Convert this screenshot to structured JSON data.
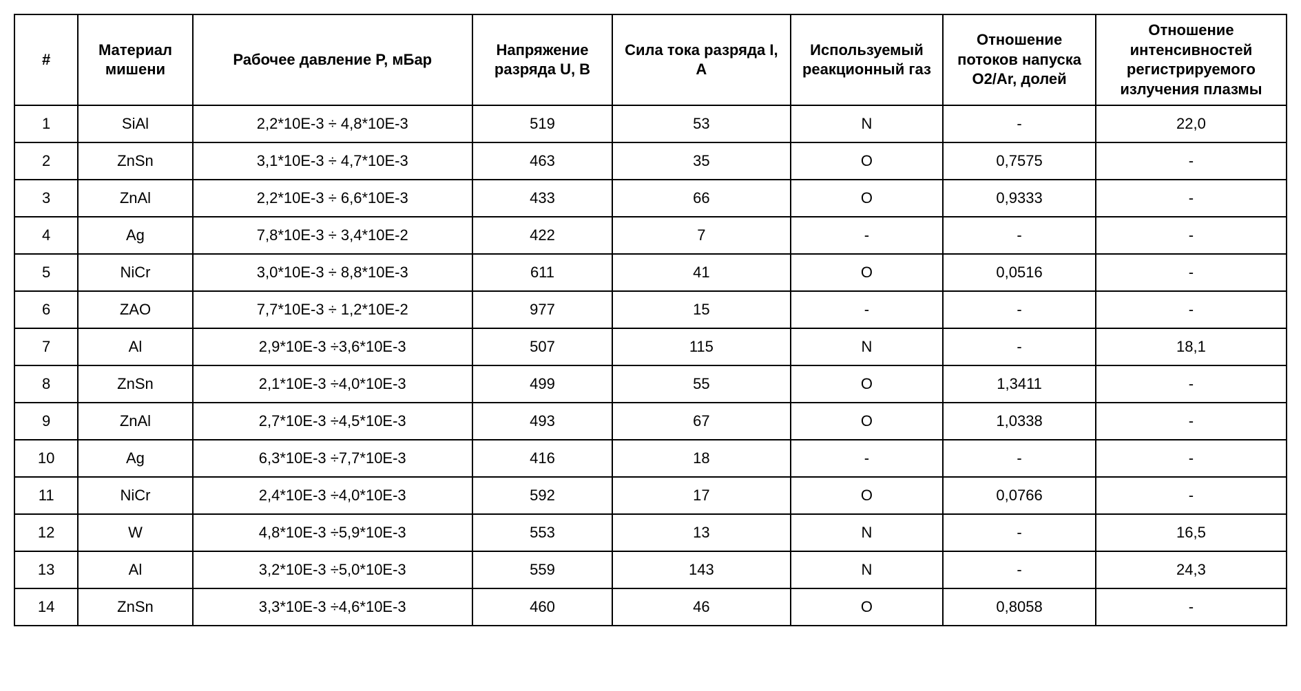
{
  "table": {
    "headers": [
      "#",
      "Материал мишени",
      "Рабочее давление P, мБар",
      "Напряжение разряда U, B",
      "Сила тока разряда I, A",
      "Используемый реакционный газ",
      "Отношение потоков напуска O2/Ar, долей",
      "Отношение интенсивностей регистрируемого излучения плазмы"
    ],
    "column_classes": [
      "col-num",
      "col-material",
      "col-pressure",
      "col-voltage",
      "col-current",
      "col-gas",
      "col-ratio",
      "col-intensity"
    ],
    "rows": [
      [
        "1",
        "SiAl",
        "2,2*10E-3 ÷ 4,8*10E-3",
        "519",
        "53",
        "N",
        "-",
        "22,0"
      ],
      [
        "2",
        "ZnSn",
        "3,1*10E-3 ÷ 4,7*10E-3",
        "463",
        "35",
        "O",
        "0,7575",
        "-"
      ],
      [
        "3",
        "ZnAl",
        "2,2*10E-3 ÷ 6,6*10E-3",
        "433",
        "66",
        "O",
        "0,9333",
        "-"
      ],
      [
        "4",
        "Ag",
        "7,8*10E-3 ÷ 3,4*10E-2",
        "422",
        "7",
        "-",
        "-",
        "-"
      ],
      [
        "5",
        "NiCr",
        "3,0*10E-3 ÷ 8,8*10E-3",
        "611",
        "41",
        "O",
        "0,0516",
        "-"
      ],
      [
        "6",
        "ZAO",
        "7,7*10E-3 ÷ 1,2*10E-2",
        "977",
        "15",
        "-",
        "-",
        "-"
      ],
      [
        "7",
        "Al",
        "2,9*10E-3 ÷3,6*10E-3",
        "507",
        "115",
        "N",
        "-",
        "18,1"
      ],
      [
        "8",
        "ZnSn",
        "2,1*10E-3 ÷4,0*10E-3",
        "499",
        "55",
        "O",
        "1,3411",
        "-"
      ],
      [
        "9",
        "ZnAl",
        "2,7*10E-3 ÷4,5*10E-3",
        "493",
        "67",
        "O",
        "1,0338",
        "-"
      ],
      [
        "10",
        "Ag",
        "6,3*10E-3 ÷7,7*10E-3",
        "416",
        "18",
        "-",
        "-",
        "-"
      ],
      [
        "11",
        "NiCr",
        "2,4*10E-3 ÷4,0*10E-3",
        "592",
        "17",
        "O",
        "0,0766",
        "-"
      ],
      [
        "12",
        "W",
        "4,8*10E-3 ÷5,9*10E-3",
        "553",
        "13",
        "N",
        "-",
        "16,5"
      ],
      [
        "13",
        "Al",
        "3,2*10E-3 ÷5,0*10E-3",
        "559",
        "143",
        "N",
        "-",
        "24,3"
      ],
      [
        "14",
        "ZnSn",
        "3,3*10E-3 ÷4,6*10E-3",
        "460",
        "46",
        "O",
        "0,8058",
        "-"
      ]
    ],
    "border_color": "#000000",
    "background_color": "#ffffff",
    "text_color": "#000000",
    "header_fontsize": 22,
    "cell_fontsize": 22
  }
}
